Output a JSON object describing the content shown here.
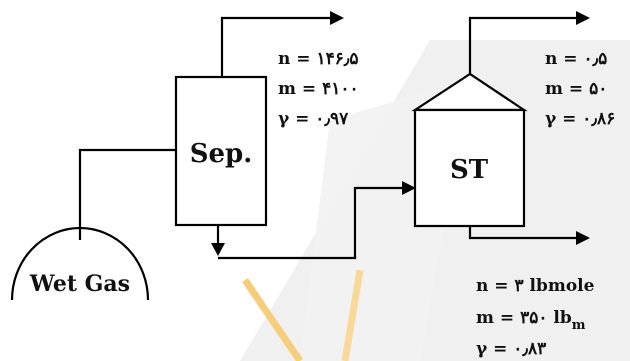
{
  "units": {
    "separator": "Sep.",
    "stabilizer": "ST",
    "inlet": "Wet Gas"
  },
  "streams": {
    "separator_gas": {
      "n": "n = ۱۴۶٫۵",
      "m": "m = ۴۱۰۰",
      "gamma": "γ = ۰٫۹۷"
    },
    "stabilizer_gas": {
      "n": "n = ۰٫۵",
      "m": "m = ۵۰",
      "gamma": "γ = ۰٫۸۶"
    },
    "stabilizer_liquid": {
      "n": "n = ۳ lbmole",
      "m_prefix": "m = ۳۵۰ lb",
      "m_sub": "m",
      "gamma": "γ = ۰٫۸۳"
    }
  },
  "colors": {
    "line": "#000000",
    "watermark_gray": "#e6e6e6",
    "watermark_orange": "#f6cd7a"
  }
}
